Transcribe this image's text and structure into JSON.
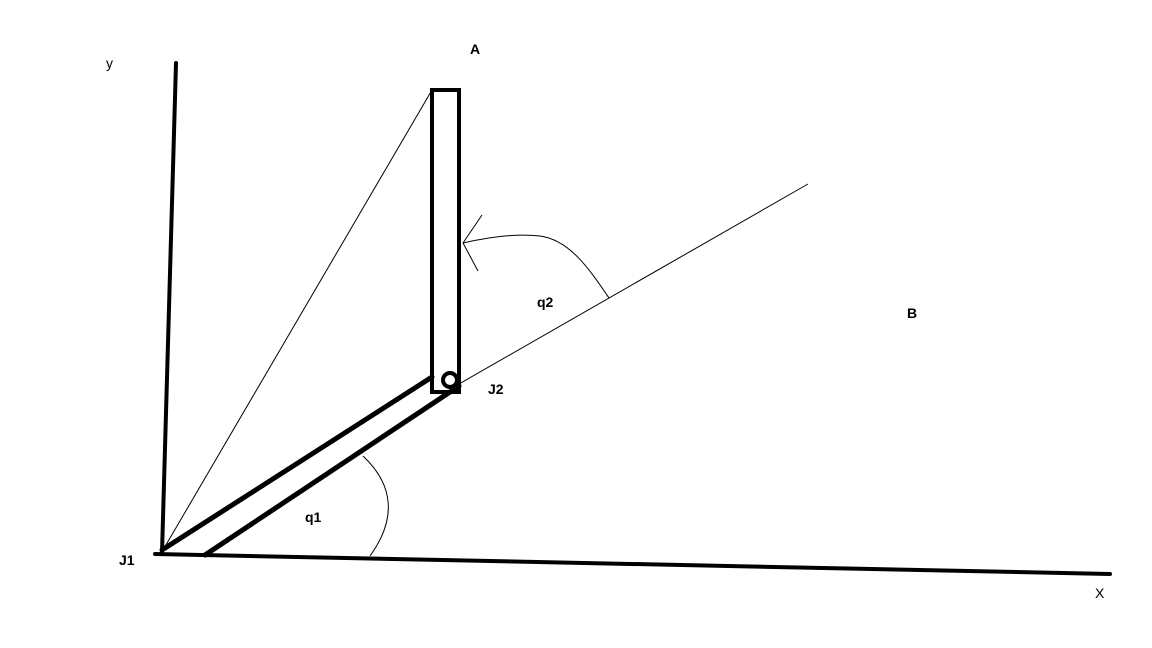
{
  "diagram": {
    "labels": {
      "y_axis": "y",
      "x_axis": "X",
      "point_a": "A",
      "point_b": "B",
      "joint_1": "J1",
      "joint_2": "J2",
      "angle_1": "q1",
      "angle_2": "q2"
    },
    "colors": {
      "ink": "#000000",
      "background": "#ffffff"
    }
  }
}
